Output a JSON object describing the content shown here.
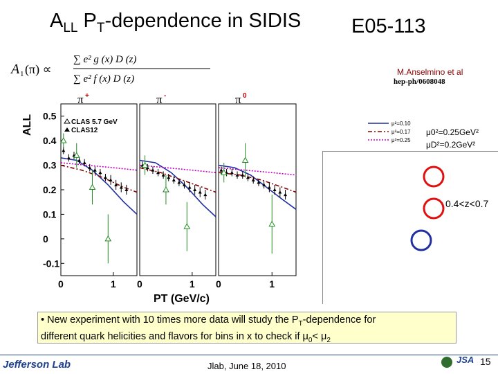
{
  "slide": {
    "title_main": "A",
    "title_sub": "LL",
    "title_p": " P",
    "title_psub": "T",
    "title_rest": "-dependence in SIDIS",
    "experiment": "E05-113",
    "reference_author": "M.Anselmino et al",
    "reference_id": "hep-ph/0608048",
    "z_cut": "0.4<z<0.7",
    "mu_label_1": "μ0²=0.25GeV²",
    "mu_label_2": "μD²=0.2GeV²",
    "note_line1_a": "• New experiment with 10 times more data will study the P",
    "note_line1_sub": "T",
    "note_line1_b": "-dependence for",
    "note_line2_a": "different quark helicities and flavors for bins in x to check if  μ",
    "note_mu0_sub": "0",
    "note_mid": "< μ",
    "note_mu2_sub": "2",
    "footer_date": "Jlab, June 18, 2010",
    "page_number": "15",
    "logo_text": "Jefferson Lab",
    "jsa_text": "JSA"
  },
  "colors": {
    "curve_010": "#1f2fa0",
    "curve_017": "#8b0000",
    "curve_025": "#c000c0",
    "data_open": "#228b22",
    "data_filled": "#000000",
    "ring_red": "#e01010",
    "ring_blue": "#1f2fa0"
  },
  "chart_data": {
    "type": "scatter",
    "ylabel": "ALL",
    "xlabel": "PT (GeV/c)",
    "panels": [
      {
        "label": "π+",
        "x_ticks": [
          "0",
          "1"
        ]
      },
      {
        "label": "π-",
        "x_ticks": [
          "0",
          "1"
        ]
      },
      {
        "label": "π0",
        "x_ticks": [
          "0",
          "1"
        ]
      }
    ],
    "y_ticks": [
      "0.5",
      "0.4",
      "0.3",
      "0.2",
      "0.1",
      "0",
      "-0.1"
    ],
    "ylim": [
      -0.15,
      0.55
    ],
    "xlim": [
      0,
      1.45
    ],
    "legend_data": [
      "CLAS 5.7 GeV",
      "CLAS12"
    ],
    "legend_curves": [
      "μ²=0.10",
      "μ²=0.17",
      "μ²=0.25"
    ],
    "curves": [
      {
        "name": "μ²=0.10",
        "style": "solid",
        "panels": [
          [
            [
              0,
              0.33
            ],
            [
              0.3,
              0.32
            ],
            [
              0.6,
              0.28
            ],
            [
              0.9,
              0.22
            ],
            [
              1.2,
              0.15
            ],
            [
              1.45,
              0.1
            ]
          ],
          [
            [
              0,
              0.32
            ],
            [
              0.3,
              0.31
            ],
            [
              0.6,
              0.27
            ],
            [
              0.9,
              0.21
            ],
            [
              1.2,
              0.14
            ],
            [
              1.45,
              0.09
            ]
          ],
          [
            [
              0,
              0.3
            ],
            [
              0.3,
              0.29
            ],
            [
              0.6,
              0.26
            ],
            [
              0.9,
              0.21
            ],
            [
              1.2,
              0.16
            ],
            [
              1.45,
              0.12
            ]
          ]
        ]
      },
      {
        "name": "μ²=0.17",
        "style": "dashdot",
        "panels": [
          [
            [
              0,
              0.3
            ],
            [
              0.4,
              0.28
            ],
            [
              0.8,
              0.25
            ],
            [
              1.2,
              0.21
            ],
            [
              1.45,
              0.19
            ]
          ],
          [
            [
              0,
              0.29
            ],
            [
              0.4,
              0.27
            ],
            [
              0.8,
              0.24
            ],
            [
              1.2,
              0.21
            ],
            [
              1.45,
              0.19
            ]
          ],
          [
            [
              0,
              0.27
            ],
            [
              0.4,
              0.26
            ],
            [
              0.8,
              0.24
            ],
            [
              1.2,
              0.21
            ],
            [
              1.45,
              0.19
            ]
          ]
        ]
      },
      {
        "name": "μ²=0.25",
        "style": "dotted",
        "panels": [
          [
            [
              0,
              0.31
            ],
            [
              0.5,
              0.3
            ],
            [
              1.0,
              0.29
            ],
            [
              1.45,
              0.28
            ]
          ],
          [
            [
              0,
              0.3
            ],
            [
              0.5,
              0.29
            ],
            [
              1.0,
              0.28
            ],
            [
              1.45,
              0.27
            ]
          ],
          [
            [
              0,
              0.29
            ],
            [
              0.5,
              0.28
            ],
            [
              1.0,
              0.27
            ],
            [
              1.45,
              0.26
            ]
          ]
        ]
      }
    ],
    "clas57": [
      [
        [
          0.05,
          0.4,
          0.03
        ],
        [
          0.3,
          0.34,
          0.05
        ],
        [
          0.6,
          0.21,
          0.07
        ],
        [
          0.9,
          0.0,
          0.1
        ]
      ],
      [
        [
          0.1,
          0.3,
          0.04
        ],
        [
          0.5,
          0.2,
          0.06
        ],
        [
          0.9,
          0.05,
          0.1
        ]
      ],
      [
        [
          0.1,
          0.27,
          0.04
        ],
        [
          0.5,
          0.32,
          0.07
        ],
        [
          1.0,
          0.06,
          0.12
        ]
      ]
    ],
    "clas12": [
      [
        [
          0.05,
          0.36,
          0.015
        ],
        [
          0.15,
          0.33,
          0.015
        ],
        [
          0.25,
          0.34,
          0.015
        ],
        [
          0.35,
          0.32,
          0.015
        ],
        [
          0.45,
          0.31,
          0.015
        ],
        [
          0.55,
          0.29,
          0.015
        ],
        [
          0.65,
          0.28,
          0.015
        ],
        [
          0.75,
          0.27,
          0.015
        ],
        [
          0.85,
          0.25,
          0.015
        ],
        [
          0.95,
          0.24,
          0.02
        ],
        [
          1.05,
          0.22,
          0.02
        ],
        [
          1.15,
          0.21,
          0.02
        ],
        [
          1.25,
          0.2,
          0.02
        ]
      ],
      [
        [
          0.05,
          0.3,
          0.015
        ],
        [
          0.15,
          0.29,
          0.015
        ],
        [
          0.25,
          0.28,
          0.015
        ],
        [
          0.35,
          0.27,
          0.015
        ],
        [
          0.45,
          0.26,
          0.015
        ],
        [
          0.55,
          0.25,
          0.015
        ],
        [
          0.65,
          0.24,
          0.015
        ],
        [
          0.75,
          0.23,
          0.015
        ],
        [
          0.85,
          0.22,
          0.015
        ],
        [
          0.95,
          0.21,
          0.02
        ],
        [
          1.05,
          0.2,
          0.02
        ],
        [
          1.15,
          0.19,
          0.02
        ],
        [
          1.25,
          0.18,
          0.02
        ]
      ],
      [
        [
          0.05,
          0.28,
          0.015
        ],
        [
          0.15,
          0.27,
          0.015
        ],
        [
          0.25,
          0.27,
          0.015
        ],
        [
          0.35,
          0.26,
          0.015
        ],
        [
          0.45,
          0.26,
          0.015
        ],
        [
          0.55,
          0.25,
          0.015
        ],
        [
          0.65,
          0.24,
          0.015
        ],
        [
          0.75,
          0.23,
          0.015
        ],
        [
          0.85,
          0.22,
          0.015
        ],
        [
          0.95,
          0.21,
          0.02
        ],
        [
          1.05,
          0.2,
          0.02
        ],
        [
          1.15,
          0.19,
          0.02
        ],
        [
          1.25,
          0.18,
          0.02
        ]
      ]
    ]
  }
}
